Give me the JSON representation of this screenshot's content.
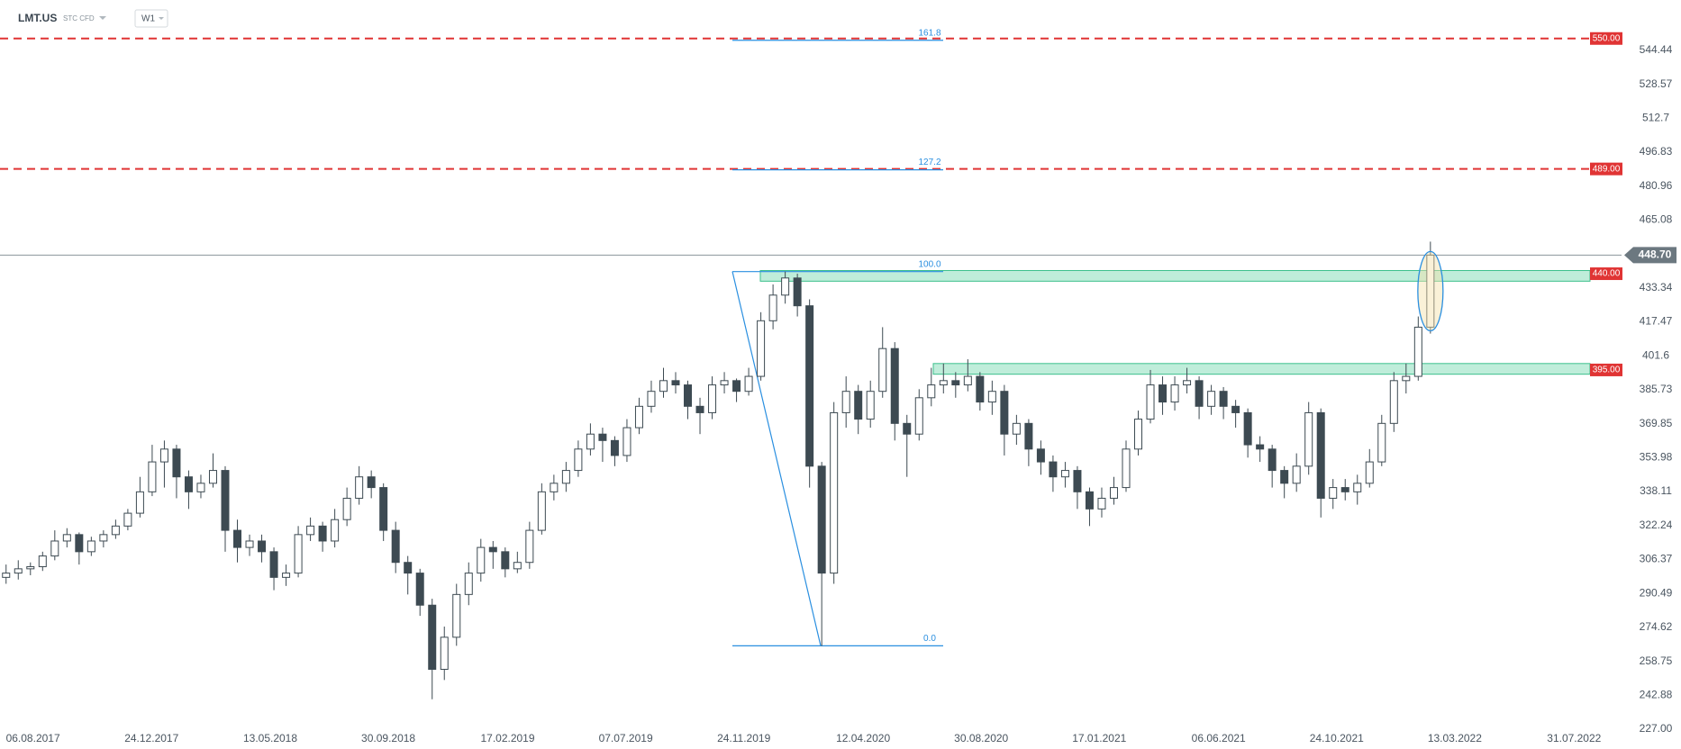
{
  "header": {
    "symbol": "LMT.US",
    "market": "STC CFD",
    "interval": "W1"
  },
  "chart_data": {
    "type": "candlestick",
    "up_color": "#ffffff",
    "down_color": "#3d4a52",
    "outline_color": "#3d4a52",
    "values": [
      [
        298,
        304,
        295,
        300
      ],
      [
        300,
        306,
        297,
        302
      ],
      [
        302,
        305,
        299,
        303
      ],
      [
        303,
        310,
        301,
        308
      ],
      [
        308,
        320,
        306,
        315
      ],
      [
        315,
        321,
        312,
        318
      ],
      [
        318,
        319,
        304,
        310
      ],
      [
        310,
        317,
        308,
        315
      ],
      [
        315,
        320,
        312,
        318
      ],
      [
        318,
        325,
        316,
        322
      ],
      [
        322,
        330,
        320,
        328
      ],
      [
        328,
        345,
        326,
        338
      ],
      [
        338,
        360,
        336,
        352
      ],
      [
        352,
        362,
        340,
        358
      ],
      [
        358,
        360,
        335,
        345
      ],
      [
        345,
        348,
        330,
        338
      ],
      [
        338,
        346,
        335,
        342
      ],
      [
        342,
        356,
        340,
        348
      ],
      [
        348,
        350,
        310,
        320
      ],
      [
        320,
        325,
        305,
        312
      ],
      [
        312,
        318,
        308,
        315
      ],
      [
        315,
        318,
        305,
        310
      ],
      [
        310,
        312,
        292,
        298
      ],
      [
        298,
        304,
        294,
        300
      ],
      [
        300,
        322,
        298,
        318
      ],
      [
        318,
        326,
        315,
        322
      ],
      [
        322,
        324,
        310,
        315
      ],
      [
        315,
        330,
        312,
        325
      ],
      [
        325,
        340,
        322,
        335
      ],
      [
        335,
        350,
        332,
        345
      ],
      [
        345,
        348,
        335,
        340
      ],
      [
        340,
        342,
        315,
        320
      ],
      [
        320,
        324,
        300,
        305
      ],
      [
        305,
        308,
        290,
        300
      ],
      [
        300,
        302,
        280,
        285
      ],
      [
        285,
        288,
        241,
        255
      ],
      [
        255,
        275,
        250,
        270
      ],
      [
        270,
        295,
        266,
        290
      ],
      [
        290,
        305,
        285,
        300
      ],
      [
        300,
        316,
        296,
        312
      ],
      [
        312,
        315,
        302,
        310
      ],
      [
        310,
        312,
        298,
        302
      ],
      [
        302,
        310,
        300,
        305
      ],
      [
        305,
        324,
        302,
        320
      ],
      [
        320,
        342,
        318,
        338
      ],
      [
        338,
        346,
        334,
        342
      ],
      [
        342,
        352,
        338,
        348
      ],
      [
        348,
        362,
        345,
        358
      ],
      [
        358,
        370,
        355,
        365
      ],
      [
        365,
        368,
        352,
        362
      ],
      [
        362,
        364,
        350,
        355
      ],
      [
        355,
        372,
        352,
        368
      ],
      [
        368,
        382,
        365,
        378
      ],
      [
        378,
        390,
        375,
        385
      ],
      [
        385,
        396,
        382,
        390
      ],
      [
        390,
        394,
        384,
        388
      ],
      [
        388,
        390,
        372,
        378
      ],
      [
        378,
        382,
        365,
        375
      ],
      [
        375,
        392,
        372,
        388
      ],
      [
        388,
        394,
        384,
        390
      ],
      [
        390,
        391,
        380,
        385
      ],
      [
        385,
        396,
        383,
        392
      ],
      [
        392,
        422,
        390,
        418
      ],
      [
        418,
        435,
        414,
        430
      ],
      [
        430,
        441,
        426,
        438
      ],
      [
        438,
        440,
        420,
        425
      ],
      [
        425,
        428,
        340,
        350
      ],
      [
        350,
        352,
        266,
        300
      ],
      [
        300,
        380,
        295,
        375
      ],
      [
        375,
        392,
        368,
        385
      ],
      [
        385,
        388,
        365,
        372
      ],
      [
        372,
        390,
        368,
        385
      ],
      [
        385,
        415,
        382,
        405
      ],
      [
        405,
        408,
        362,
        370
      ],
      [
        370,
        374,
        345,
        365
      ],
      [
        365,
        386,
        362,
        382
      ],
      [
        382,
        396,
        378,
        388
      ],
      [
        388,
        398,
        384,
        390
      ],
      [
        390,
        394,
        382,
        388
      ],
      [
        388,
        400,
        385,
        392
      ],
      [
        392,
        394,
        376,
        380
      ],
      [
        380,
        390,
        374,
        385
      ],
      [
        385,
        388,
        355,
        365
      ],
      [
        365,
        374,
        360,
        370
      ],
      [
        370,
        372,
        350,
        358
      ],
      [
        358,
        362,
        346,
        352
      ],
      [
        352,
        355,
        338,
        345
      ],
      [
        345,
        352,
        340,
        348
      ],
      [
        348,
        350,
        330,
        338
      ],
      [
        338,
        340,
        322,
        330
      ],
      [
        330,
        340,
        326,
        335
      ],
      [
        335,
        345,
        332,
        340
      ],
      [
        340,
        362,
        338,
        358
      ],
      [
        358,
        376,
        355,
        372
      ],
      [
        372,
        395,
        370,
        388
      ],
      [
        388,
        392,
        374,
        380
      ],
      [
        380,
        392,
        376,
        388
      ],
      [
        388,
        396,
        384,
        390
      ],
      [
        390,
        392,
        372,
        378
      ],
      [
        378,
        388,
        374,
        385
      ],
      [
        385,
        387,
        372,
        378
      ],
      [
        378,
        381,
        368,
        375
      ],
      [
        375,
        377,
        354,
        360
      ],
      [
        360,
        364,
        352,
        358
      ],
      [
        358,
        360,
        340,
        348
      ],
      [
        348,
        350,
        335,
        342
      ],
      [
        342,
        356,
        338,
        350
      ],
      [
        350,
        380,
        346,
        375
      ],
      [
        375,
        377,
        326,
        335
      ],
      [
        335,
        344,
        330,
        340
      ],
      [
        340,
        344,
        334,
        338
      ],
      [
        338,
        346,
        332,
        342
      ],
      [
        342,
        358,
        340,
        352
      ],
      [
        352,
        374,
        350,
        370
      ],
      [
        370,
        394,
        366,
        390
      ],
      [
        390,
        398,
        384,
        392
      ],
      [
        392,
        420,
        390,
        415
      ],
      [
        415,
        455,
        412,
        448.7
      ]
    ],
    "xlim": [
      -0.5,
      132.7
    ],
    "xticks": [
      {
        "value": 2.21,
        "label": "06.08.2017"
      },
      {
        "value": 11.95,
        "label": "24.12.2017"
      },
      {
        "value": 21.7,
        "label": "13.05.2018"
      },
      {
        "value": 31.4,
        "label": "30.09.2018"
      },
      {
        "value": 41.2,
        "label": "17.02.2019"
      },
      {
        "value": 50.9,
        "label": "07.07.2019"
      },
      {
        "value": 60.6,
        "label": "24.11.2019"
      },
      {
        "value": 70.4,
        "label": "12.04.2020"
      },
      {
        "value": 80.1,
        "label": "30.08.2020"
      },
      {
        "value": 89.8,
        "label": "17.01.2021"
      },
      {
        "value": 99.6,
        "label": "06.06.2021"
      },
      {
        "value": 109.3,
        "label": "24.10.2021"
      },
      {
        "value": 119.0,
        "label": "13.03.2022"
      },
      {
        "value": 128.8,
        "label": "31.07.2022"
      }
    ],
    "ylim": [
      227,
      568
    ],
    "yticks": [
      {
        "value": 227,
        "label": "227.00"
      },
      242.88,
      258.75,
      274.62,
      290.49,
      306.37,
      322.24,
      338.11,
      353.98,
      369.85,
      385.73,
      401.6,
      417.47,
      433.34,
      465.08,
      480.96,
      496.83,
      512.7,
      528.57,
      544.44
    ],
    "current_price": {
      "value": 448.7,
      "label": "448.70"
    },
    "levels": [
      {
        "value": 550,
        "label": "550.00"
      },
      {
        "value": 489,
        "label": "489.00"
      }
    ],
    "level_color": "#e03434",
    "zones": [
      {
        "value": 440,
        "label": "440.00",
        "low": 436.5,
        "high": 441.5
      },
      {
        "value": 395,
        "label": "395.00",
        "low": 393,
        "high": 398
      }
    ],
    "zone_color": "#7fdcb6",
    "fibonacci": {
      "low": 266,
      "high": 441,
      "color": "#2a8fe0",
      "levels": [
        161.8,
        127.2,
        {
          "value": 100,
          "label": "100.0"
        },
        {
          "value": 0,
          "label": "0.0"
        }
      ]
    }
  }
}
